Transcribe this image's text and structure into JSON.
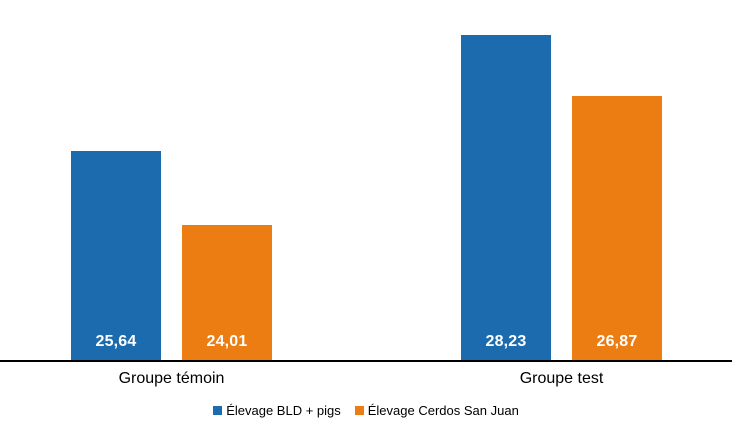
{
  "chart_data": {
    "type": "bar",
    "title": "",
    "xlabel": "",
    "ylabel": "",
    "categories": [
      "Groupe témoin",
      "Groupe test"
    ],
    "series": [
      {
        "name": "Élevage BLD + pigs",
        "color": "#1C6BAE",
        "values": [
          25.64,
          28.23
        ],
        "value_labels": [
          "25,64",
          "28,23"
        ]
      },
      {
        "name": "Élevage Cerdos San Juan",
        "color": "#EC7D13",
        "values": [
          24.01,
          26.87
        ],
        "value_labels": [
          "24,01",
          "26,87"
        ]
      }
    ],
    "ylim": [
      21,
      29
    ],
    "grid": false,
    "legend_position": "bottom",
    "value_label_color": "#FFFFFF",
    "axis_line_color": "#000000"
  }
}
